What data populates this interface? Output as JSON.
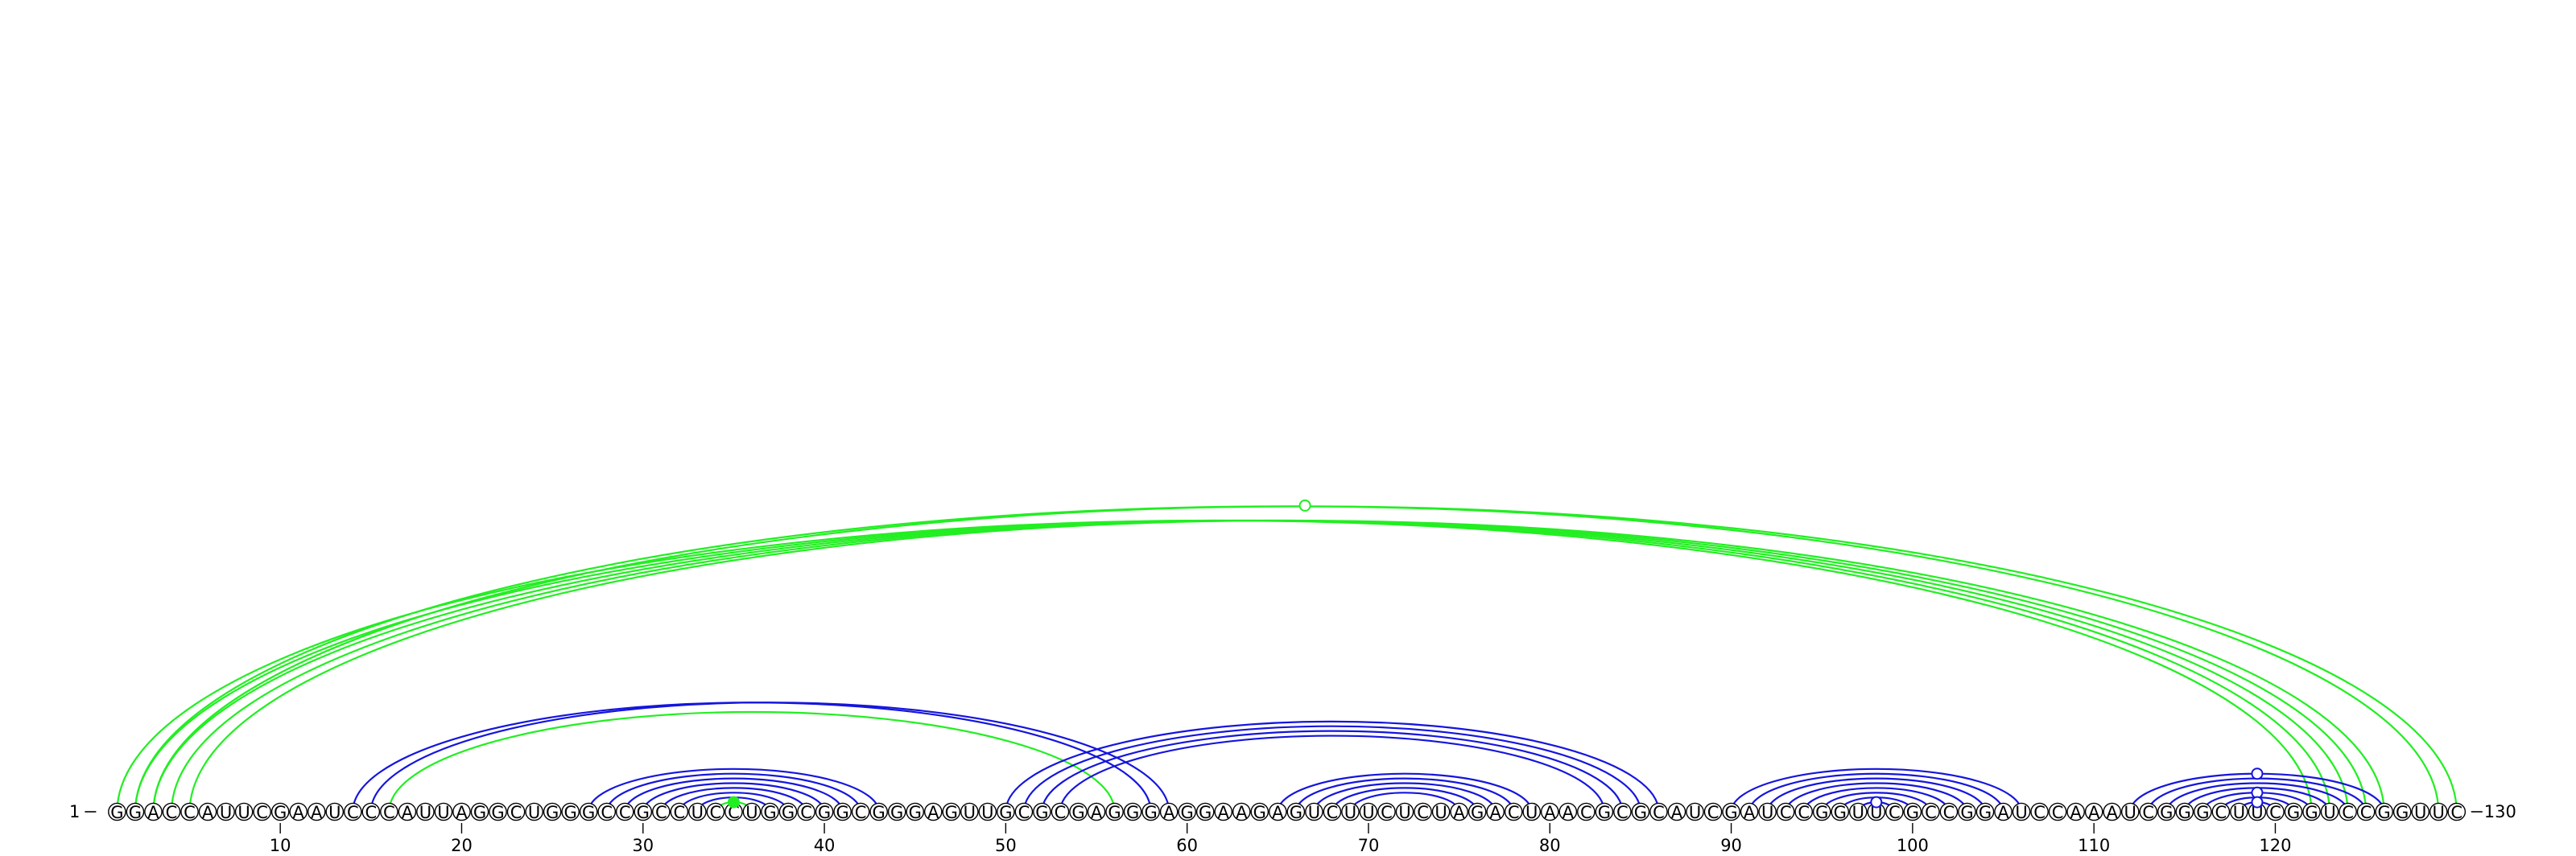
{
  "sequence": "GGACCAUUCGAAUCCCAUUAGGCUGGGCCGCCUCCUGGCGGCGGGAGUUGCGCGAGGGAGGAAGAGUCUUCUCUAGACUAACGCGCAUCGAUCCGGUUCGCCGGAUCCAAAUCGGGCUUCGGUCCGGUUC",
  "labels": {
    "start_index": "1",
    "end_index": "130"
  },
  "ticks": [
    {
      "pos": 10,
      "label": "10"
    },
    {
      "pos": 20,
      "label": "20"
    },
    {
      "pos": 30,
      "label": "30"
    },
    {
      "pos": 40,
      "label": "40"
    },
    {
      "pos": 50,
      "label": "50"
    },
    {
      "pos": 60,
      "label": "60"
    },
    {
      "pos": 70,
      "label": "70"
    },
    {
      "pos": 80,
      "label": "80"
    },
    {
      "pos": 90,
      "label": "90"
    },
    {
      "pos": 100,
      "label": "100"
    },
    {
      "pos": 110,
      "label": "110"
    },
    {
      "pos": 120,
      "label": "120"
    }
  ],
  "colors": {
    "green": "#22ee22",
    "blue": "#1515dd"
  },
  "pairs": {
    "green": [
      [
        1,
        122
      ],
      [
        2,
        123
      ],
      [
        3,
        124
      ],
      [
        4,
        125
      ],
      [
        5,
        126
      ],
      [
        2,
        129
      ],
      [
        3,
        130
      ],
      [
        16,
        56
      ],
      [
        34,
        36
      ]
    ],
    "blue": [
      [
        14,
        58
      ],
      [
        15,
        59
      ],
      [
        27,
        43
      ],
      [
        28,
        42
      ],
      [
        29,
        41
      ],
      [
        30,
        40
      ],
      [
        31,
        39
      ],
      [
        32,
        38
      ],
      [
        33,
        37
      ],
      [
        50,
        86
      ],
      [
        51,
        85
      ],
      [
        52,
        84
      ],
      [
        53,
        83
      ],
      [
        65,
        79
      ],
      [
        66,
        78
      ],
      [
        67,
        77
      ],
      [
        68,
        76
      ],
      [
        69,
        75
      ],
      [
        90,
        106
      ],
      [
        91,
        105
      ],
      [
        92,
        104
      ],
      [
        93,
        103
      ],
      [
        94,
        102
      ],
      [
        95,
        101
      ],
      [
        96,
        100
      ],
      [
        97,
        99
      ],
      [
        112,
        126
      ],
      [
        113,
        125
      ],
      [
        114,
        124
      ],
      [
        115,
        123
      ],
      [
        116,
        122
      ],
      [
        117,
        121
      ],
      [
        118,
        120
      ]
    ]
  },
  "markers": [
    {
      "pair": [
        3,
        130
      ],
      "color": "green",
      "style": "open"
    },
    {
      "pair": [
        34,
        36
      ],
      "color": "green",
      "style": "filled"
    },
    {
      "pair": [
        97,
        99
      ],
      "color": "blue",
      "style": "open"
    },
    {
      "pair": [
        112,
        126
      ],
      "color": "blue",
      "style": "open"
    },
    {
      "pair": [
        116,
        122
      ],
      "color": "blue",
      "style": "open"
    },
    {
      "pair": [
        118,
        120
      ],
      "color": "blue",
      "style": "open"
    }
  ]
}
